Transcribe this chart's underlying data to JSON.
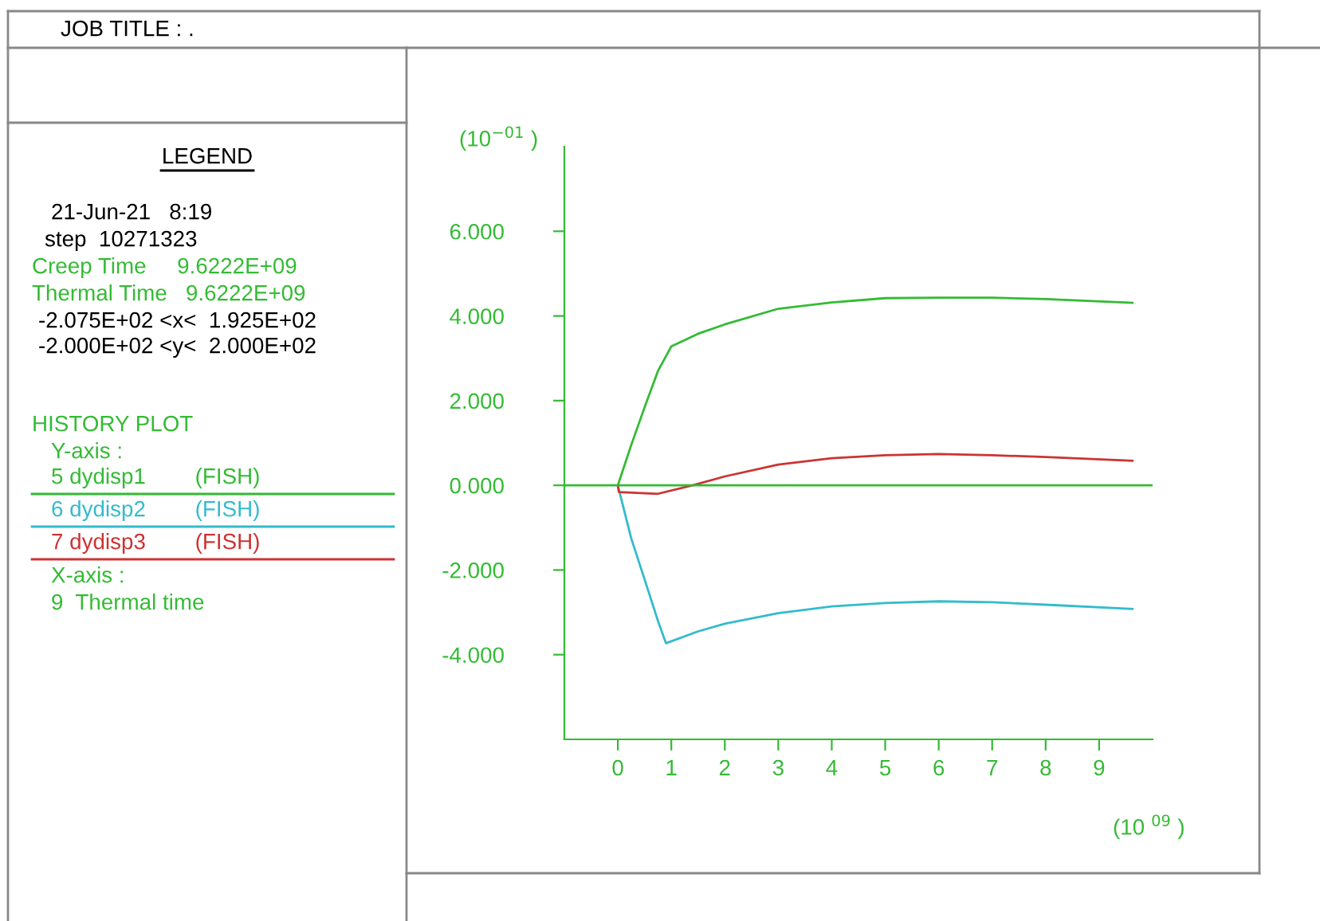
{
  "chart_data": {
    "type": "line",
    "title": "JOB TITLE : .",
    "xlabel": "(10 $^{09}$ )",
    "ylabel": "(10$^{−01}$ )",
    "annotations": [
      "LEGEND",
      "21-Jun-21   8:19",
      "step  10271323",
      "Creep Time     9.6222E+09",
      "Thermal Time   9.6222E+09",
      "-2.075E+02 <x<  1.925E+02",
      "-2.000E+02 <y<  2.000E+02",
      "HISTORY PLOT",
      "Y-axis :",
      "X-axis :",
      "9  Thermal time"
    ],
    "series": [
      {
        "name": "5 dydisp1        (FISH)",
        "color": "#33bb33",
        "x": [
          0,
          0.25,
          0.5,
          0.75,
          1,
          1.5,
          2,
          3,
          4,
          5,
          6,
          7,
          8,
          9.6222
        ],
        "values": [
          0,
          0.95,
          1.84,
          2.7,
          3.28,
          3.58,
          3.8,
          4.17,
          4.32,
          4.42,
          4.43,
          4.43,
          4.4,
          4.31
        ]
      },
      {
        "name": "6 dydisp2        (FISH)",
        "color": "#33bbcc",
        "x": [
          0,
          0.25,
          0.5,
          0.75,
          0.9,
          1.5,
          2,
          3,
          4,
          5,
          6,
          7,
          8,
          9.6222
        ],
        "values": [
          0,
          -1.25,
          -2.22,
          -3.2,
          -3.73,
          -3.45,
          -3.27,
          -3.02,
          -2.86,
          -2.78,
          -2.74,
          -2.76,
          -2.82,
          -2.92
        ]
      },
      {
        "name": "7 dydisp3        (FISH)",
        "color": "#cc3333",
        "x": [
          0,
          0.02,
          0.75,
          1.4,
          2,
          3,
          4,
          5,
          6,
          7,
          8,
          9.6222
        ],
        "values": [
          0,
          -0.16,
          -0.2,
          0,
          0.21,
          0.49,
          0.64,
          0.71,
          0.74,
          0.71,
          0.67,
          0.58
        ]
      }
    ],
    "xlim": [
      -1,
      10
    ],
    "xticks": [
      0,
      1,
      2,
      3,
      4,
      5,
      6,
      7,
      8,
      9
    ],
    "ylim": [
      -6,
      8
    ],
    "yticks": [
      {
        "value": -4,
        "label": "-4.000"
      },
      {
        "value": -2,
        "label": "-2.000"
      },
      {
        "value": 0,
        "label": "0.000"
      },
      {
        "value": 2,
        "label": "2.000"
      },
      {
        "value": 4,
        "label": "4.000"
      },
      {
        "value": 6,
        "label": "6.000"
      }
    ],
    "ref_lines": [
      {
        "axis": "y",
        "value": 0,
        "color": "#33bb33"
      }
    ],
    "grid": false,
    "legend": "left",
    "marker": "none",
    "line_style": "solid"
  }
}
